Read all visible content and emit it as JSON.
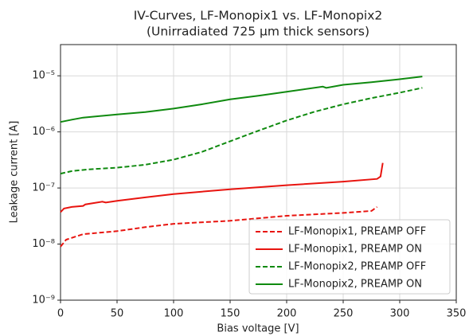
{
  "chart_data": {
    "type": "line",
    "title": [
      "IV-Curves, LF-Monopix1 vs. LF-Monopix2",
      "(Unirradiated 725 μm thick sensors)"
    ],
    "x_label": "Bias voltage [V]",
    "y_label": "Leakage current [A]",
    "xlim": [
      0,
      350
    ],
    "xticks": [
      0,
      50,
      100,
      150,
      200,
      250,
      300,
      350
    ],
    "ylim": [
      1e-09,
      3.6e-05
    ],
    "log_y": true,
    "grid": true,
    "legend": "lower right",
    "yticks": [
      {
        "value": 1e-09,
        "label": "10⁻⁹"
      },
      {
        "value": 1e-08,
        "label": "10⁻⁸"
      },
      {
        "value": 1e-07,
        "label": "10⁻⁷"
      },
      {
        "value": 1e-06,
        "label": "10⁻⁶"
      },
      {
        "value": 1e-05,
        "label": "10⁻⁵"
      }
    ],
    "series": [
      {
        "name": "LF-Monopix1, PREAMP OFF",
        "color": "#e8140f",
        "style": "dashed",
        "x": [
          0,
          5,
          20,
          50,
          75,
          100,
          150,
          200,
          250,
          275,
          280
        ],
        "values": [
          9e-09,
          1.2e-08,
          1.5e-08,
          1.7e-08,
          2e-08,
          2.3e-08,
          2.6e-08,
          3.2e-08,
          3.6e-08,
          3.9e-08,
          4.6e-08
        ]
      },
      {
        "name": "LF-Monopix1, PREAMP ON",
        "color": "#e8140f",
        "style": "solid",
        "x": [
          0,
          3,
          10,
          20,
          22,
          37,
          40,
          50,
          75,
          100,
          150,
          200,
          250,
          280,
          283,
          285
        ],
        "values": [
          3.7e-08,
          4.3e-08,
          4.6e-08,
          4.8e-08,
          5.1e-08,
          5.7e-08,
          5.5e-08,
          5.9e-08,
          6.8e-08,
          7.8e-08,
          9.5e-08,
          1.12e-07,
          1.3e-07,
          1.45e-07,
          1.6e-07,
          2.8e-07
        ]
      },
      {
        "name": "LF-Monopix2, PREAMP OFF",
        "color": "#0f8a0f",
        "style": "dashed",
        "x": [
          0,
          10,
          25,
          50,
          75,
          100,
          125,
          150,
          175,
          200,
          225,
          250,
          275,
          300,
          320
        ],
        "values": [
          1.8e-07,
          2e-07,
          2.15e-07,
          2.3e-07,
          2.6e-07,
          3.2e-07,
          4.4e-07,
          6.8e-07,
          1.05e-06,
          1.6e-06,
          2.3e-06,
          3.1e-06,
          4e-06,
          5e-06,
          6.1e-06
        ]
      },
      {
        "name": "LF-Monopix2, PREAMP ON",
        "color": "#0f8a0f",
        "style": "solid",
        "x": [
          0,
          10,
          20,
          50,
          75,
          100,
          125,
          150,
          175,
          200,
          232,
          235,
          250,
          275,
          300,
          320
        ],
        "values": [
          1.5e-06,
          1.65e-06,
          1.8e-06,
          2.05e-06,
          2.25e-06,
          2.6e-06,
          3.1e-06,
          3.8e-06,
          4.4e-06,
          5.2e-06,
          6.4e-06,
          6.1e-06,
          6.9e-06,
          7.7e-06,
          8.7e-06,
          9.7e-06
        ]
      }
    ]
  }
}
